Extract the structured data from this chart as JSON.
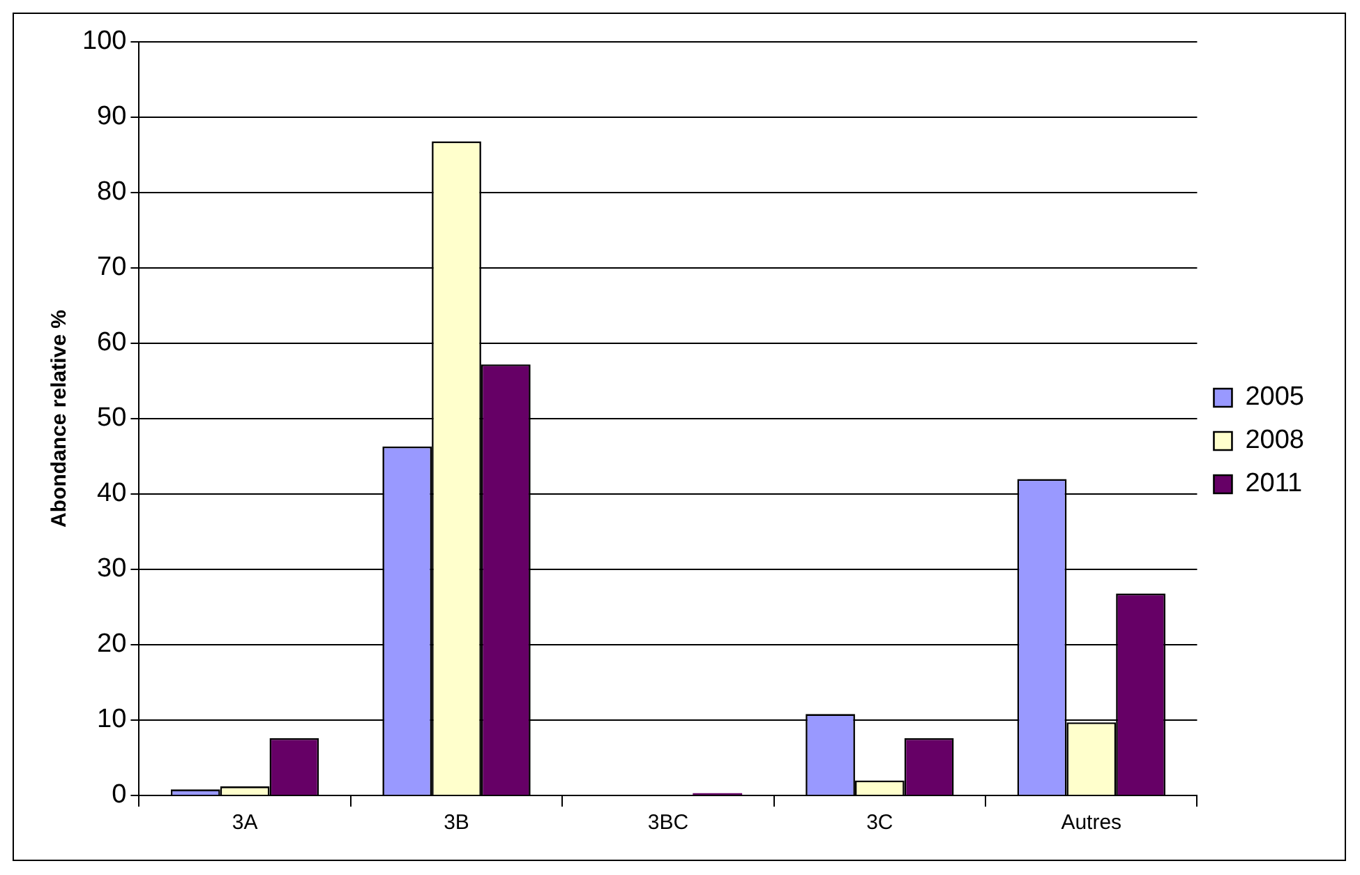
{
  "chart_data": {
    "type": "bar",
    "ylabel": "Abondance relative %",
    "categories": [
      "3A",
      "3B",
      "3BC",
      "3C",
      "Autres"
    ],
    "series": [
      {
        "name": "2005",
        "color": "#9999ff",
        "values": [
          0.8,
          46.3,
          0,
          10.8,
          42
        ]
      },
      {
        "name": "2008",
        "color": "#ffffcc",
        "values": [
          1.2,
          86.8,
          0,
          2.0,
          9.7
        ]
      },
      {
        "name": "2011",
        "color": "#660066",
        "values": [
          7.6,
          57.2,
          0.3,
          7.6,
          26.8
        ]
      }
    ],
    "ylim": [
      0,
      100
    ],
    "yticks": [
      0,
      10,
      20,
      30,
      40,
      50,
      60,
      70,
      80,
      90,
      100
    ],
    "grid": "y",
    "legend": "right"
  }
}
